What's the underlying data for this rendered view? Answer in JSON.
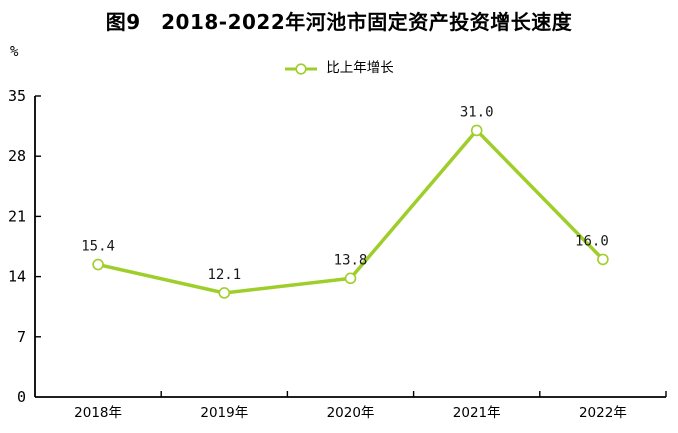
{
  "title": "图9　2018-2022年河池市固定资产投资增长速度",
  "unit_label": "%",
  "legend": {
    "label": "比上年增长"
  },
  "colors": {
    "line": "#9fce2b",
    "marker_fill": "#ffffff",
    "axis": "#000000",
    "text": "#1a1a1a"
  },
  "chart_data": {
    "type": "line",
    "title": "图9　2018-2022年河池市固定资产投资增长速度",
    "categories": [
      "2018年",
      "2019年",
      "2020年",
      "2021年",
      "2022年"
    ],
    "series": [
      {
        "name": "比上年增长",
        "values": [
          15.4,
          12.1,
          13.8,
          31.0,
          16.0
        ]
      }
    ],
    "data_labels": [
      "15.4",
      "12.1",
      "13.8",
      "31.0",
      "16.0"
    ],
    "label_dx": [
      0,
      0,
      0,
      0,
      -11
    ],
    "ylabel": "%",
    "ylim": [
      0,
      35
    ],
    "yticks": [
      0,
      7,
      14,
      21,
      28,
      35
    ],
    "grid": false,
    "legend_position": "top-center"
  }
}
